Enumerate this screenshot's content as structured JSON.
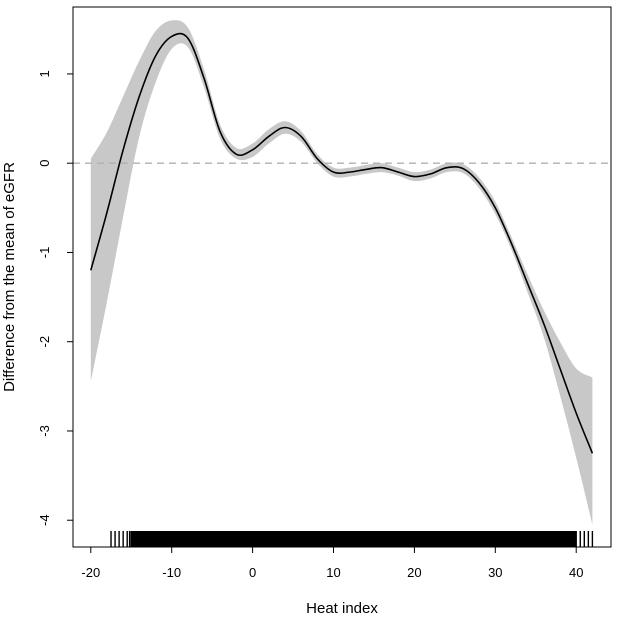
{
  "chart_data": {
    "type": "line",
    "title": "",
    "xlabel": "Heat index",
    "ylabel": "Difference from the mean of eGFR",
    "xlim": [
      -22.2,
      44.3
    ],
    "ylim": [
      -4.3,
      1.75
    ],
    "x_ticks": [
      -20,
      -10,
      0,
      10,
      20,
      30,
      40
    ],
    "y_ticks": [
      -4,
      -3,
      -2,
      -1,
      0,
      1
    ],
    "x_tick_labels": [
      "-20",
      "-10",
      "0",
      "10",
      "20",
      "30",
      "40"
    ],
    "y_tick_labels": [
      "-4",
      "-3",
      "-2",
      "-1",
      "0",
      "1"
    ],
    "reference_line": {
      "y": 0,
      "style": "dashed",
      "color": "#b0b0b0"
    },
    "grid": false,
    "legend": "none",
    "colors": {
      "line": "#000000",
      "band": "#c8c8c8"
    },
    "series": [
      {
        "x": [
          -20,
          -18,
          -16,
          -14,
          -12,
          -10,
          -8,
          -6,
          -4,
          -2,
          0,
          2,
          4,
          6,
          8,
          10,
          12,
          14,
          16,
          18,
          20,
          22,
          24,
          26,
          28,
          30,
          32,
          34,
          36,
          38,
          40,
          42
        ],
        "y": [
          -1.2,
          -0.55,
          0.15,
          0.75,
          1.2,
          1.42,
          1.4,
          0.95,
          0.35,
          0.1,
          0.15,
          0.3,
          0.4,
          0.3,
          0.05,
          -0.1,
          -0.1,
          -0.07,
          -0.05,
          -0.1,
          -0.15,
          -0.12,
          -0.05,
          -0.06,
          -0.22,
          -0.5,
          -0.9,
          -1.35,
          -1.8,
          -2.3,
          -2.8,
          -3.25
        ],
        "lower": [
          -2.45,
          -1.55,
          -0.6,
          0.3,
          0.9,
          1.28,
          1.3,
          0.85,
          0.27,
          0.05,
          0.07,
          0.22,
          0.33,
          0.24,
          0.0,
          -0.15,
          -0.15,
          -0.12,
          -0.1,
          -0.14,
          -0.2,
          -0.17,
          -0.1,
          -0.11,
          -0.28,
          -0.57,
          -0.97,
          -1.45,
          -1.95,
          -2.6,
          -3.3,
          -4.05
        ],
        "upper": [
          0.05,
          0.35,
          0.75,
          1.15,
          1.48,
          1.6,
          1.52,
          1.05,
          0.43,
          0.17,
          0.22,
          0.38,
          0.47,
          0.36,
          0.1,
          -0.05,
          -0.05,
          -0.02,
          0.0,
          -0.05,
          -0.1,
          -0.07,
          0.0,
          -0.01,
          -0.16,
          -0.43,
          -0.83,
          -1.25,
          -1.65,
          -2.0,
          -2.3,
          -2.4
        ]
      }
    ],
    "rug": {
      "values": [
        -17.5,
        -17,
        -16.5,
        -16,
        -15.5,
        -15.2,
        -15,
        -14.5,
        -14,
        -13.5,
        -13,
        -12.5,
        -12,
        -11.5,
        -11,
        -10.5,
        -10,
        -9.5,
        -9,
        -8.5,
        -8,
        -7.5,
        -7,
        -6.5,
        -6,
        -5.5,
        -5,
        -4.5,
        -4,
        -3.5,
        -3,
        -2.5,
        -2,
        -1.5,
        -1,
        -0.5,
        0,
        0.5,
        1,
        1.5,
        2,
        2.5,
        3,
        3.5,
        4,
        4.5,
        5,
        5.5,
        6,
        6.5,
        7,
        7.5,
        8,
        8.5,
        9,
        9.5,
        10,
        10.5,
        11,
        11.5,
        12,
        12.5,
        13,
        13.5,
        14,
        14.5,
        15,
        15.5,
        16,
        16.5,
        17,
        17.5,
        18,
        18.5,
        19,
        19.5,
        20,
        20.5,
        21,
        21.5,
        22,
        22.5,
        23,
        23.5,
        24,
        24.5,
        25,
        25.5,
        26,
        26.5,
        27,
        27.5,
        28,
        28.5,
        29,
        29.5,
        30,
        30.5,
        31,
        31.5,
        32,
        32.5,
        33,
        33.5,
        34,
        34.5,
        35,
        35.5,
        36,
        36.5,
        37,
        37.5,
        38,
        38.5,
        39,
        39.5,
        40,
        40.5,
        41,
        41.5,
        42
      ],
      "dense_range": [
        -15,
        40
      ]
    }
  }
}
